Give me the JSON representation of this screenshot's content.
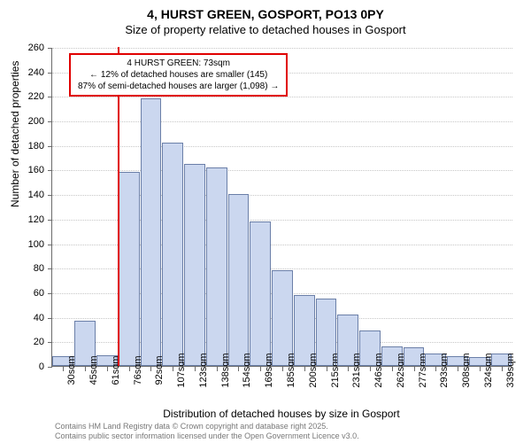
{
  "title": {
    "main": "4, HURST GREEN, GOSPORT, PO13 0PY",
    "sub": "Size of property relative to detached houses in Gosport"
  },
  "chart": {
    "type": "histogram",
    "ylabel": "Number of detached properties",
    "xlabel": "Distribution of detached houses by size in Gosport",
    "ylim": [
      0,
      260
    ],
    "ytick_step": 20,
    "background_color": "#ffffff",
    "grid_color": "#c7c7c7",
    "axis_color": "#6b6b6b",
    "bar_fill": "#cbd7ef",
    "bar_border": "#6b7fa8",
    "marker_color": "#e00000",
    "marker_x_category": "76sqm",
    "x_categories": [
      "30sqm",
      "45sqm",
      "61sqm",
      "76sqm",
      "92sqm",
      "107sqm",
      "123sqm",
      "138sqm",
      "154sqm",
      "169sqm",
      "185sqm",
      "200sqm",
      "215sqm",
      "231sqm",
      "246sqm",
      "262sqm",
      "277sqm",
      "293sqm",
      "308sqm",
      "324sqm",
      "339sqm"
    ],
    "values": [
      8,
      37,
      9,
      158,
      218,
      182,
      165,
      162,
      140,
      118,
      78,
      58,
      55,
      42,
      29,
      16,
      15,
      10,
      8,
      7,
      10
    ],
    "label_fontsize": 12,
    "tick_fontsize": 11
  },
  "annotation": {
    "border_color": "#e00000",
    "line1": "4 HURST GREEN: 73sqm",
    "line2": "← 12% of detached houses are smaller (145)",
    "line3": "87% of semi-detached houses are larger (1,098) →"
  },
  "footer": {
    "line1": "Contains HM Land Registry data © Crown copyright and database right 2025.",
    "line2": "Contains public sector information licensed under the Open Government Licence v3.0."
  }
}
